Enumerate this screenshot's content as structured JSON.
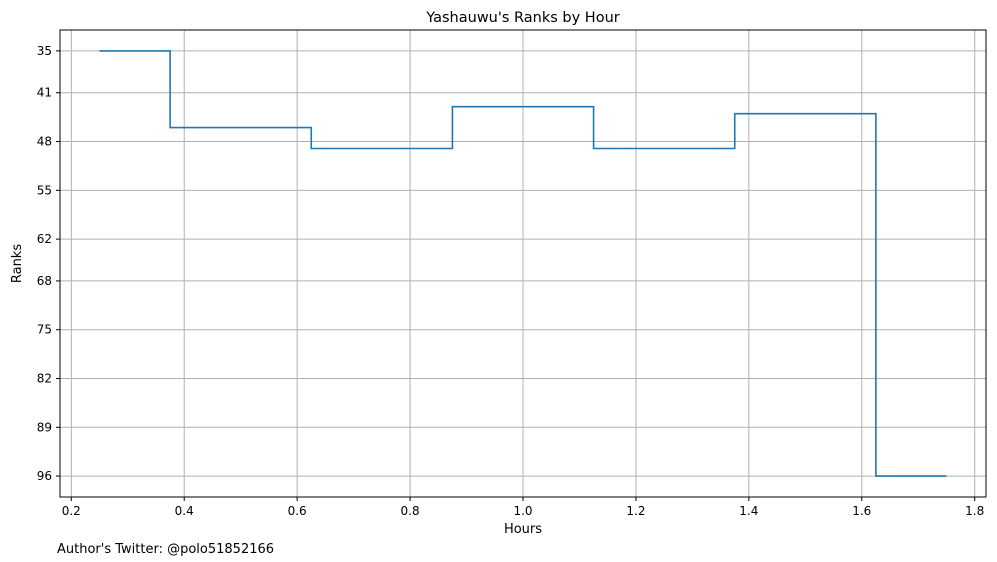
{
  "chart_data": {
    "type": "line",
    "step": "mid",
    "title": "Yashauwu's Ranks by Hour",
    "xlabel": "Hours",
    "ylabel": "Ranks",
    "xlim": [
      0.18,
      1.82
    ],
    "ylim": [
      99,
      32
    ],
    "y_inverted": true,
    "grid": true,
    "xticks": [
      0.2,
      0.4,
      0.6,
      0.8,
      1.0,
      1.2,
      1.4,
      1.6,
      1.8
    ],
    "xtick_labels": [
      "0.2",
      "0.4",
      "0.6",
      "0.8",
      "1.0",
      "1.2",
      "1.4",
      "1.6",
      "1.8"
    ],
    "yticks": [
      35,
      41,
      48,
      55,
      62,
      68,
      75,
      82,
      89,
      96
    ],
    "ytick_labels": [
      "35",
      "41",
      "48",
      "55",
      "62",
      "68",
      "75",
      "82",
      "89",
      "96"
    ],
    "series": [
      {
        "color": "#1f77b4",
        "x": [
          0.25,
          0.5,
          0.75,
          1.0,
          1.25,
          1.5,
          1.75
        ],
        "y": [
          35,
          46,
          49,
          43,
          49,
          44,
          96
        ]
      }
    ]
  },
  "footer": {
    "author": "Author's Twitter: @polo51852166"
  }
}
